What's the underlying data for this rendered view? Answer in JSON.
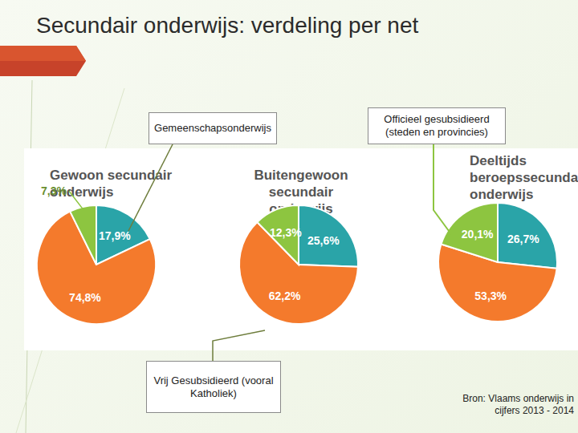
{
  "title": "Secundair onderwijs: verdeling per net",
  "chart_data": [
    {
      "type": "pie",
      "title": "Gewoon secundair onderwijs",
      "values": [
        17.9,
        74.8,
        7.3
      ],
      "value_labels": [
        "17,9%",
        "74,8%",
        "7,3%"
      ],
      "colors": [
        "#2aa4a8",
        "#f47a2c",
        "#8dc540"
      ],
      "data_labels": true
    },
    {
      "type": "pie",
      "title": "Buitengewoon secundair onderwijs",
      "values": [
        25.6,
        62.2,
        12.3
      ],
      "value_labels": [
        "25,6%",
        "62,2%",
        "12,3%"
      ],
      "colors": [
        "#2aa4a8",
        "#f47a2c",
        "#8dc540"
      ],
      "data_labels": true
    },
    {
      "type": "pie",
      "title": "Deeltijds beroepssecundair onderwijs",
      "values": [
        26.7,
        53.3,
        20.1
      ],
      "value_labels": [
        "26,7%",
        "53,3%",
        "20,1%"
      ],
      "colors": [
        "#2aa4a8",
        "#f47a2c",
        "#8dc540"
      ],
      "data_labels": true
    }
  ],
  "annotations": [
    "Gemeenschapsonderwijs",
    "Officieel gesubsidieerd (steden en provincies)",
    "Vrij Gesubsidieerd (vooral Katholiek)"
  ],
  "source": "Bron: Vlaams onderwijs in cijfers 2013 - 2014"
}
